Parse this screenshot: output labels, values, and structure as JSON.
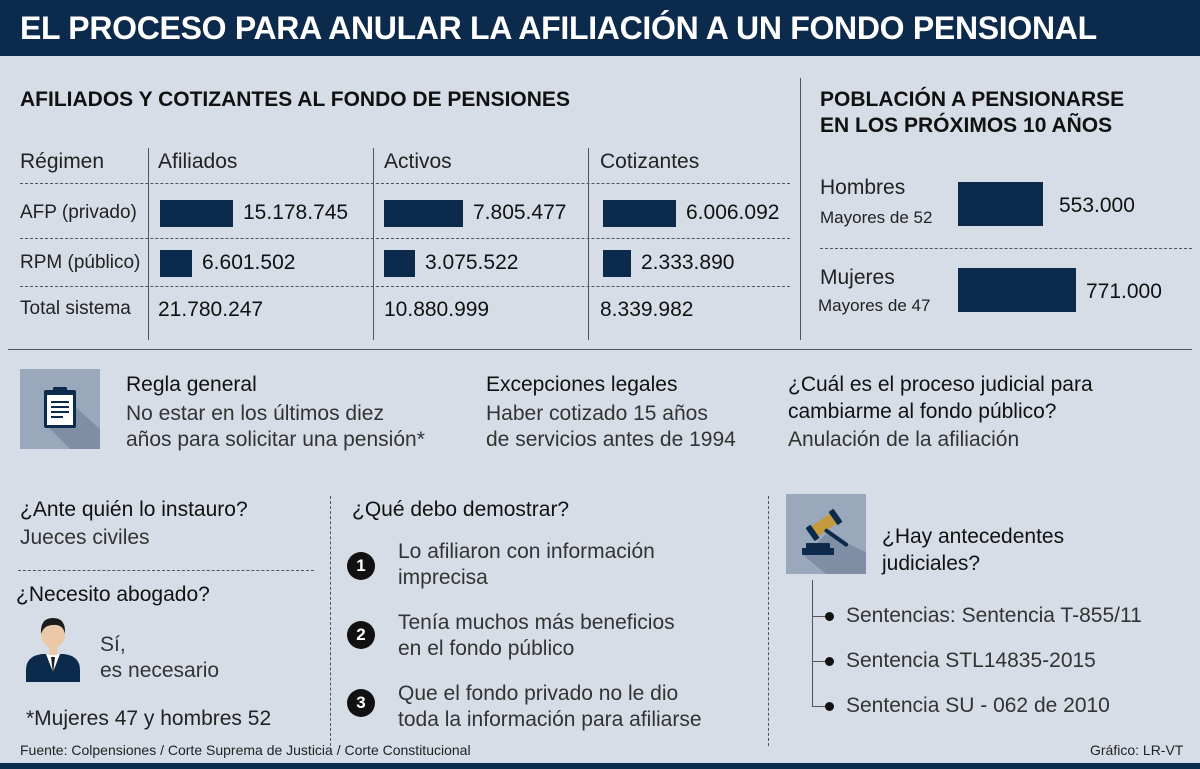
{
  "header": {
    "title": "EL PROCESO PARA ANULAR LA AFILIACIÓN A UN FONDO PENSIONAL"
  },
  "chart_data": [
    {
      "type": "bar",
      "title": "AFILIADOS Y COTIZANTES AL FONDO DE PENSIONES",
      "row_header": "Régimen",
      "categories": [
        "AFP (privado)",
        "RPM (público)"
      ],
      "series": [
        {
          "name": "Afiliados",
          "values": [
            15178745,
            6601502
          ],
          "labels": [
            "15.178.745",
            "6.601.502"
          ],
          "total": "21.780.247"
        },
        {
          "name": "Activos",
          "values": [
            7805477,
            3075522
          ],
          "labels": [
            "7.805.477",
            "3.075.522"
          ],
          "total": "10.880.999"
        },
        {
          "name": "Cotizantes",
          "values": [
            6006092,
            2333890
          ],
          "labels": [
            "6.006.092",
            "2.333.890"
          ],
          "total": "8.339.982"
        }
      ],
      "total_label": "Total sistema"
    },
    {
      "type": "bar",
      "title": "POBLACIÓN A PENSIONARSE EN LOS PRÓXIMOS 10 AÑOS",
      "title_lines": [
        "POBLACIÓN A PENSIONARSE",
        "EN LOS PRÓXIMOS 10 AÑOS"
      ],
      "categories": [
        "Hombres",
        "Mujeres"
      ],
      "sublabels": [
        "Mayores de 52",
        "Mayores de 47"
      ],
      "values": [
        553000,
        771000
      ],
      "labels": [
        "553.000",
        "771.000"
      ]
    }
  ],
  "info": {
    "regla": {
      "title": "Regla general",
      "lines": [
        "No estar en los últimos diez",
        "años para solicitar una pensión*"
      ],
      "icon": "clipboard-icon"
    },
    "excepciones": {
      "title": "Excepciones legales",
      "lines": [
        "Haber cotizado 15 años",
        "de servicios antes de 1994"
      ]
    },
    "proceso": {
      "lines": [
        "¿Cuál es el proceso judicial para",
        "cambiarme al fondo público?"
      ],
      "answer": "Anulación de la afiliación"
    }
  },
  "ante": {
    "question": "¿Ante quién lo instauro?",
    "answer": "Jueces civiles"
  },
  "abogado": {
    "question": "¿Necesito abogado?",
    "answer_lines": [
      "Sí,",
      "es necesario"
    ],
    "icon": "lawyer-icon"
  },
  "nota": "*Mujeres 47 y hombres 52",
  "demostrar": {
    "question": "¿Qué debo demostrar?",
    "items": [
      {
        "n": "1",
        "lines": [
          "Lo afiliaron con información",
          "imprecisa"
        ]
      },
      {
        "n": "2",
        "lines": [
          "Tenía muchos más beneficios",
          "en el fondo público"
        ]
      },
      {
        "n": "3",
        "lines": [
          "Que el fondo privado no le dio",
          "toda la información para afiliarse"
        ]
      }
    ]
  },
  "antecedentes": {
    "question_lines": [
      "¿Hay antecedentes",
      "judiciales?"
    ],
    "icon": "gavel-icon",
    "items": [
      "Sentencias: Sentencia T-855/11",
      "Sentencia STL14835-2015",
      "Sentencia SU - 062 de 2010"
    ]
  },
  "footer": {
    "source": "Fuente:  Colpensiones / Corte Suprema de Justicia / Corte Constitucional",
    "credit": "Gráfico: LR-VT"
  },
  "colors": {
    "navy": "#0b2a4c",
    "background": "#d7dde6",
    "tile": "#9aa8bc"
  }
}
